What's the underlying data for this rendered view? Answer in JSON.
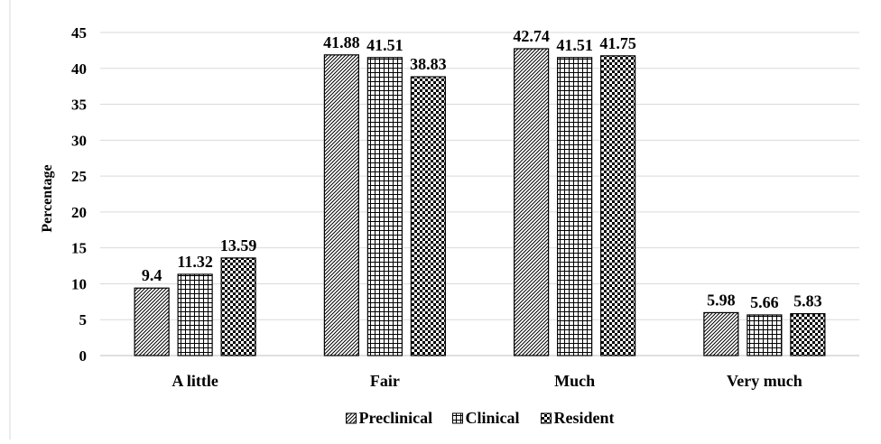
{
  "chart_data": {
    "type": "bar",
    "title": "",
    "xlabel": "",
    "ylabel": "Percentage",
    "ylim": [
      0,
      45
    ],
    "yticks": [
      0,
      5,
      10,
      15,
      20,
      25,
      30,
      35,
      40,
      45
    ],
    "grid": "horizontal",
    "legend_position": "bottom",
    "categories": [
      "A little",
      "Fair",
      "Much",
      "Very much"
    ],
    "series": [
      {
        "name": "Preclinical",
        "pattern": "diagonal-stripes",
        "values": [
          9.4,
          41.88,
          42.74,
          5.98
        ],
        "labels": [
          "9.4",
          "41.88",
          "42.74",
          "5.98"
        ]
      },
      {
        "name": "Clinical",
        "pattern": "grid",
        "values": [
          11.32,
          41.51,
          41.51,
          5.66
        ],
        "labels": [
          "11.32",
          "41.51",
          "41.51",
          "5.66"
        ]
      },
      {
        "name": "Resident",
        "pattern": "checkerboard",
        "values": [
          13.59,
          38.83,
          41.75,
          5.83
        ],
        "labels": [
          "13.59",
          "38.83",
          "41.75",
          "5.83"
        ]
      }
    ],
    "colors": {
      "stroke": "#000000",
      "gridline": "#d9d9d9",
      "axis": "#bfbfbf",
      "background": "#ffffff"
    }
  }
}
